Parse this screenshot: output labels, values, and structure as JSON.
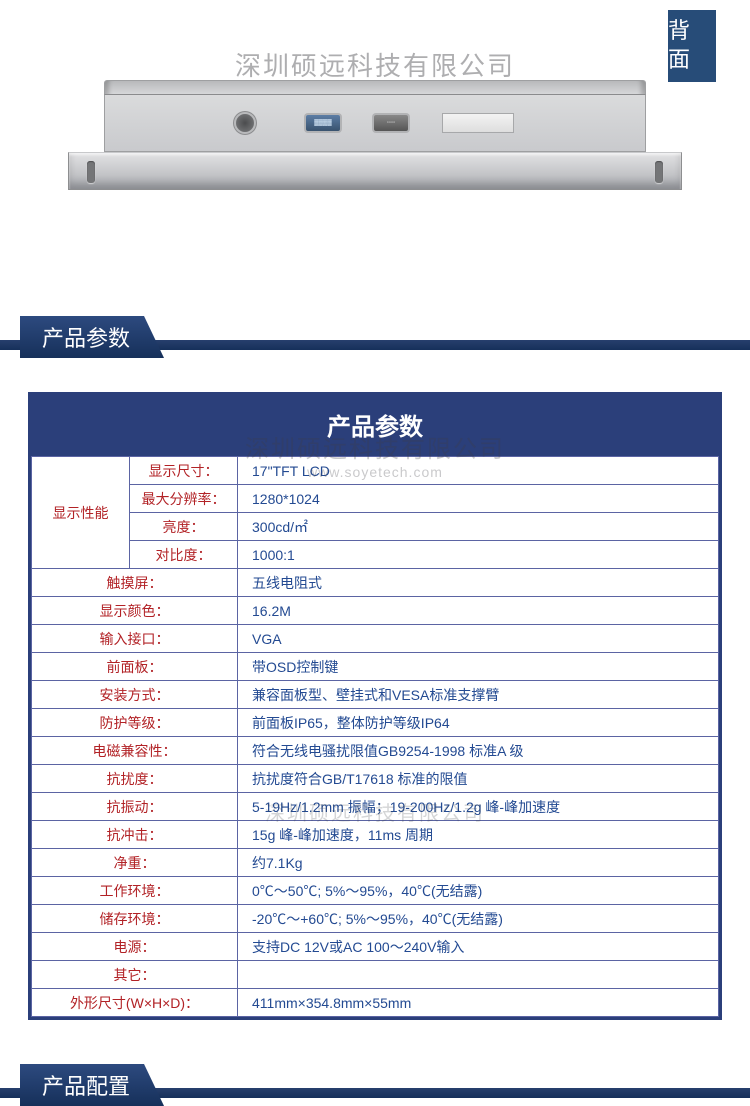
{
  "badge_back": "背\n面",
  "watermark_company": "深圳硕远科技有限公司",
  "watermark_url": "www.soyetech.com",
  "section_params": "产品参数",
  "section_config": "产品配置",
  "table_title": "产品参数",
  "colors": {
    "brand_blue": "#2b3f7a",
    "label_red": "#b22226",
    "value_blue": "#234a92",
    "border": "#5b64a3"
  },
  "group_label": "显示性能",
  "group_rows": [
    {
      "sub": "显示尺寸：",
      "val": "17\"TFT  LCD"
    },
    {
      "sub": "最大分辨率：",
      "val": "1280*1024"
    },
    {
      "sub": "亮度：",
      "val": "300cd/㎡"
    },
    {
      "sub": "对比度：",
      "val": "1000:1"
    }
  ],
  "rows": [
    {
      "lbl": "触摸屏：",
      "val": "五线电阻式"
    },
    {
      "lbl": "显示颜色：",
      "val": "16.2M"
    },
    {
      "lbl": "输入接口：",
      "val": "VGA"
    },
    {
      "lbl": "前面板：",
      "val": "带OSD控制键"
    },
    {
      "lbl": "安装方式：",
      "val": "兼容面板型、壁挂式和VESA标准支撑臂"
    },
    {
      "lbl": "防护等级：",
      "val": "前面板IP65，整体防护等级IP64"
    },
    {
      "lbl": "电磁兼容性：",
      "val": "符合无线电骚扰限值GB9254-1998 标准A 级"
    },
    {
      "lbl": "抗扰度：",
      "val": "抗扰度符合GB/T17618 标准的限值"
    },
    {
      "lbl": "抗振动：",
      "val": "5-19Hz/1.2mm 振幅；19-200Hz/1.2g 峰-峰加速度"
    },
    {
      "lbl": "抗冲击：",
      "val": "15g 峰-峰加速度，11ms 周期"
    },
    {
      "lbl": "净重：",
      "val": "约7.1Kg"
    },
    {
      "lbl": "工作环境：",
      "val": "0℃～50℃; 5%～95%，40℃(无结露)"
    },
    {
      "lbl": "储存环境：",
      "val": "-20℃～+60℃; 5%～95%，40℃(无结露)"
    },
    {
      "lbl": "电源：",
      "val": "支持DC 12V或AC 100～240V输入"
    },
    {
      "lbl": "其它：",
      "val": ""
    },
    {
      "lbl": "外形尺寸(W×H×D)：",
      "val": "411mm×354.8mm×55mm"
    }
  ]
}
